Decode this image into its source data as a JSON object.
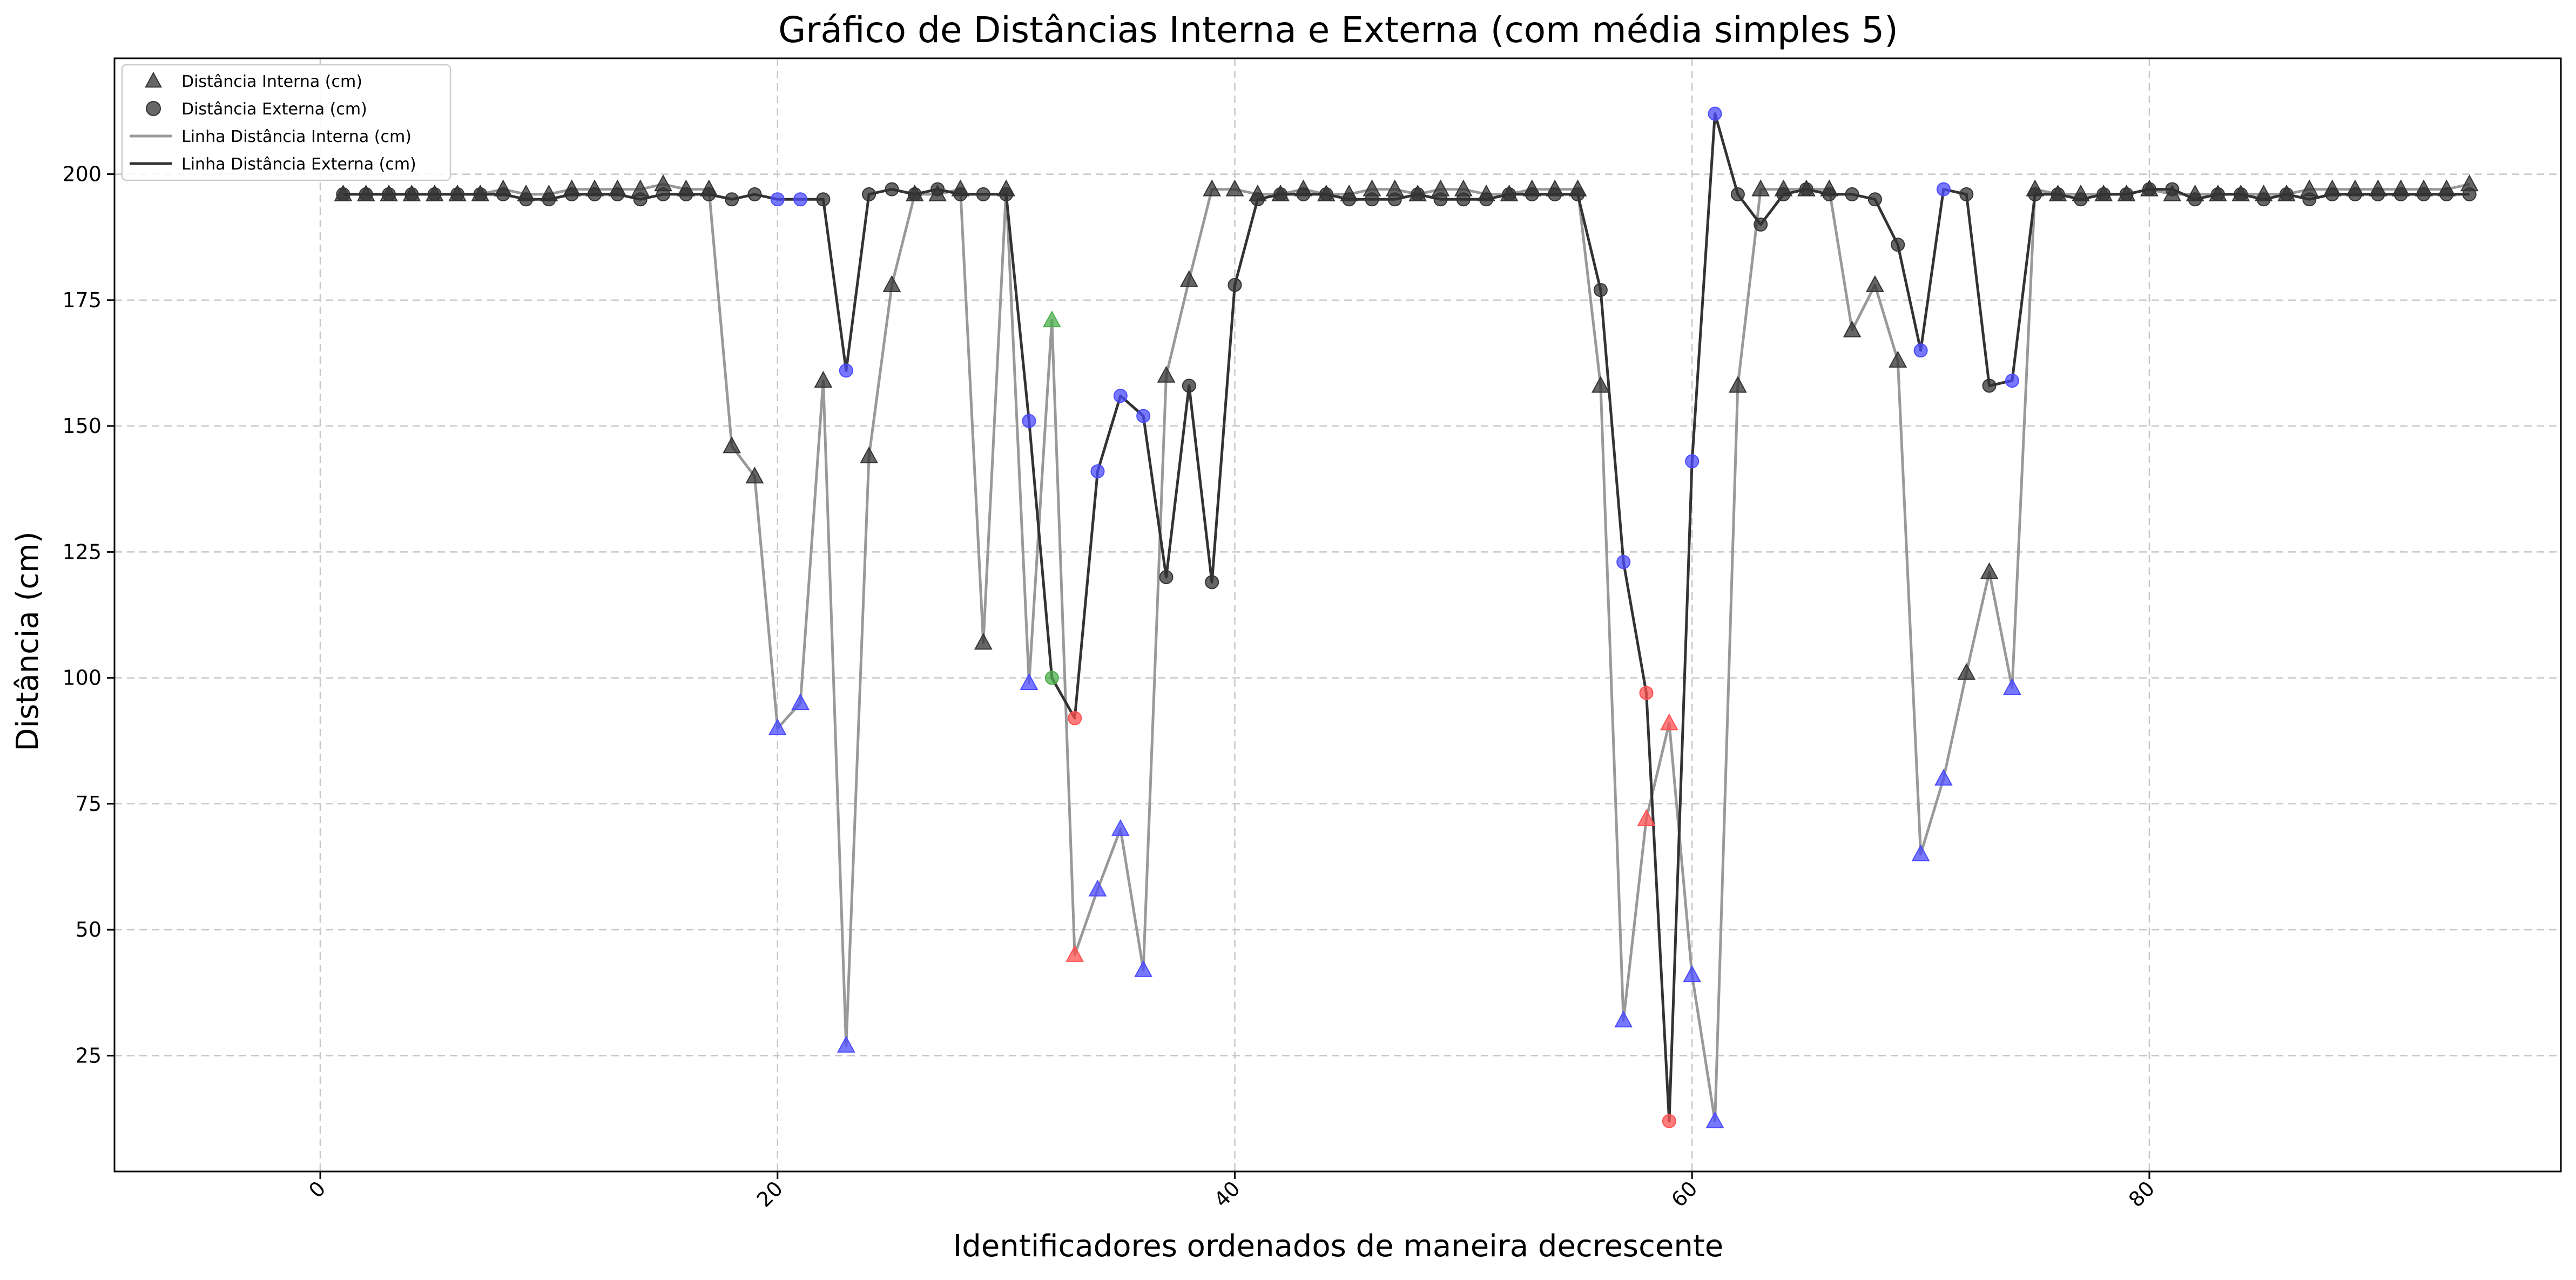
{
  "chart_data": {
    "type": "scatter",
    "title": "Gráfico de Distâncias Interna e Externa (com média simples 5)",
    "xlabel": "Identificadores ordenados de maneira decrescente",
    "ylabel": "Distância (cm)",
    "xlim": [
      -9,
      98
    ],
    "ylim": [
      2,
      223
    ],
    "xticks": [
      0,
      20,
      40,
      60,
      80
    ],
    "yticks": [
      25,
      50,
      75,
      100,
      125,
      150,
      175,
      200
    ],
    "grid": true,
    "legend_position": "top-left",
    "legend": {
      "interna_markers": "Distância Interna (cm)",
      "externa_markers": "Distância Externa (cm)",
      "interna_line": "Linha Distância Interna (cm)",
      "externa_line": "Linha Distância Externa (cm)"
    },
    "colors": {
      "interna_line": "#999999",
      "externa_line": "#333333",
      "black": "#333333",
      "blue": "#4b4bff",
      "red": "#ff5050",
      "green": "#4caf4c"
    },
    "x": [
      1,
      2,
      3,
      4,
      5,
      6,
      7,
      8,
      9,
      10,
      11,
      12,
      13,
      14,
      15,
      16,
      17,
      18,
      19,
      20,
      21,
      22,
      23,
      24,
      25,
      26,
      27,
      28,
      29,
      30,
      31,
      32,
      33,
      34,
      35,
      36,
      37,
      38,
      39,
      40,
      41,
      42,
      43,
      44,
      45,
      46,
      47,
      48,
      49,
      50,
      51,
      52,
      53,
      54,
      55,
      56,
      57,
      58,
      59,
      60,
      61,
      62,
      63,
      64,
      65,
      66,
      67,
      68,
      69,
      70,
      71,
      72,
      73,
      74,
      75,
      76,
      77,
      78,
      79,
      80,
      81,
      82,
      83,
      84,
      85,
      86,
      87,
      88,
      89,
      90,
      91,
      92,
      93,
      94
    ],
    "series": [
      {
        "name": "Distância Interna (cm)",
        "marker": "triangle",
        "values": [
          196,
          196,
          196,
          196,
          196,
          196,
          196,
          197,
          196,
          196,
          197,
          197,
          197,
          197,
          198,
          197,
          197,
          146,
          140,
          90,
          95,
          159,
          27,
          144,
          178,
          196,
          196,
          197,
          107,
          197,
          99,
          171,
          45,
          58,
          70,
          42,
          160,
          179,
          197,
          197,
          196,
          196,
          197,
          196,
          196,
          197,
          197,
          196,
          197,
          197,
          196,
          196,
          197,
          197,
          197,
          158,
          32,
          72,
          91,
          41,
          12,
          158,
          197,
          197,
          197,
          197,
          169,
          178,
          163,
          65,
          80,
          101,
          121,
          98,
          197,
          196,
          196,
          196,
          196,
          197,
          196,
          196,
          196,
          196,
          196,
          196,
          197,
          197,
          197,
          197,
          197,
          197,
          197,
          198
        ],
        "colors": [
          "black",
          "black",
          "black",
          "black",
          "black",
          "black",
          "black",
          "black",
          "black",
          "black",
          "black",
          "black",
          "black",
          "black",
          "black",
          "black",
          "black",
          "black",
          "black",
          "blue",
          "blue",
          "black",
          "blue",
          "black",
          "black",
          "black",
          "black",
          "black",
          "black",
          "black",
          "blue",
          "green",
          "red",
          "blue",
          "blue",
          "blue",
          "black",
          "black",
          "black",
          "black",
          "black",
          "black",
          "black",
          "black",
          "black",
          "black",
          "black",
          "black",
          "black",
          "black",
          "black",
          "black",
          "black",
          "black",
          "black",
          "black",
          "blue",
          "red",
          "red",
          "blue",
          "blue",
          "black",
          "black",
          "black",
          "black",
          "black",
          "black",
          "black",
          "black",
          "blue",
          "blue",
          "black",
          "black",
          "blue",
          "black",
          "black",
          "black",
          "black",
          "black",
          "black",
          "black",
          "black",
          "black",
          "black",
          "black",
          "black",
          "black",
          "black",
          "black",
          "black",
          "black",
          "black",
          "black",
          "black"
        ]
      },
      {
        "name": "Distância Externa (cm)",
        "marker": "circle",
        "values": [
          196,
          196,
          196,
          196,
          196,
          196,
          196,
          196,
          195,
          195,
          196,
          196,
          196,
          195,
          196,
          196,
          196,
          195,
          196,
          195,
          195,
          195,
          161,
          196,
          197,
          196,
          197,
          196,
          196,
          196,
          151,
          100,
          92,
          141,
          156,
          152,
          120,
          158,
          119,
          178,
          195,
          196,
          196,
          196,
          195,
          195,
          195,
          196,
          195,
          195,
          195,
          196,
          196,
          196,
          196,
          177,
          123,
          97,
          12,
          143,
          212,
          196,
          190,
          196,
          197,
          196,
          196,
          195,
          186,
          165,
          197,
          196,
          158,
          159,
          196,
          196,
          195,
          196,
          196,
          197,
          197,
          195,
          196,
          196,
          195,
          196,
          195,
          196,
          196,
          196,
          196,
          196,
          196,
          196
        ],
        "colors": [
          "black",
          "black",
          "black",
          "black",
          "black",
          "black",
          "black",
          "black",
          "black",
          "black",
          "black",
          "black",
          "black",
          "black",
          "black",
          "black",
          "black",
          "black",
          "black",
          "blue",
          "blue",
          "black",
          "blue",
          "black",
          "black",
          "black",
          "black",
          "black",
          "black",
          "black",
          "blue",
          "green",
          "red",
          "blue",
          "blue",
          "blue",
          "black",
          "black",
          "black",
          "black",
          "black",
          "black",
          "black",
          "black",
          "black",
          "black",
          "black",
          "black",
          "black",
          "black",
          "black",
          "black",
          "black",
          "black",
          "black",
          "black",
          "blue",
          "red",
          "red",
          "blue",
          "blue",
          "black",
          "black",
          "black",
          "black",
          "black",
          "black",
          "black",
          "black",
          "blue",
          "blue",
          "black",
          "black",
          "blue",
          "black",
          "black",
          "black",
          "black",
          "black",
          "black",
          "black",
          "black",
          "black",
          "black",
          "black",
          "black",
          "black",
          "black",
          "black",
          "black",
          "black",
          "black",
          "black",
          "black"
        ]
      }
    ]
  }
}
